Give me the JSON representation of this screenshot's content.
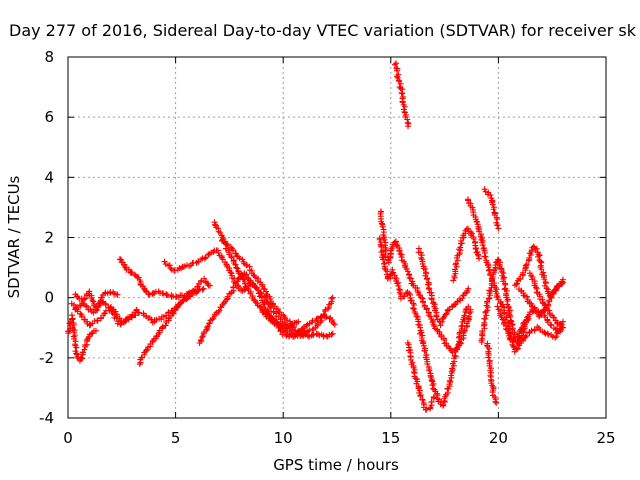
{
  "chart_data": {
    "type": "scatter",
    "title": "Day 277 of 2016, Sidereal Day-to-day VTEC variation (SDTVAR) for receiver sk",
    "xlabel": "GPS time / hours",
    "ylabel": "SDTVAR / TECUs",
    "xlim": [
      0,
      25
    ],
    "ylim": [
      -4,
      8
    ],
    "x_ticks": [
      0,
      5,
      10,
      15,
      20,
      25
    ],
    "y_ticks": [
      -4,
      -2,
      0,
      2,
      4,
      6,
      8
    ],
    "grid": true,
    "marker": "plus",
    "marker_color": "#ff0000",
    "segments": [
      {
        "points": [
          [
            0.0,
            -1.2
          ],
          [
            0.2,
            -0.6
          ],
          [
            0.4,
            -1.9
          ],
          [
            0.6,
            -2.1
          ],
          [
            0.8,
            -1.6
          ],
          [
            1.0,
            -1.2
          ],
          [
            1.3,
            -1.1
          ]
        ]
      },
      {
        "points": [
          [
            0.2,
            -0.2
          ],
          [
            0.6,
            -0.6
          ],
          [
            1.0,
            -0.9
          ],
          [
            1.5,
            -0.7
          ],
          [
            2.0,
            -0.3
          ],
          [
            2.5,
            -0.8
          ],
          [
            3.0,
            -0.6
          ],
          [
            3.3,
            -0.5
          ]
        ]
      },
      {
        "points": [
          [
            0.3,
            -0.4
          ],
          [
            0.7,
            -0.2
          ],
          [
            1.2,
            -0.5
          ],
          [
            1.6,
            -0.1
          ],
          [
            2.0,
            -0.4
          ],
          [
            2.4,
            -0.9
          ],
          [
            2.8,
            -0.7
          ],
          [
            3.2,
            -0.4
          ]
        ]
      },
      {
        "points": [
          [
            0.3,
            0.1
          ],
          [
            0.7,
            -0.1
          ],
          [
            1.0,
            0.2
          ],
          [
            1.3,
            -0.4
          ],
          [
            1.6,
            0.1
          ],
          [
            2.0,
            0.2
          ],
          [
            2.3,
            0.1
          ]
        ]
      },
      {
        "points": [
          [
            2.4,
            1.3
          ],
          [
            2.7,
            1.0
          ],
          [
            3.0,
            0.8
          ],
          [
            3.3,
            0.6
          ],
          [
            3.5,
            0.3
          ],
          [
            3.8,
            0.1
          ],
          [
            4.2,
            0.2
          ],
          [
            4.6,
            0.1
          ],
          [
            5.0,
            0.0
          ],
          [
            5.5,
            0.1
          ],
          [
            6.0,
            0.2
          ],
          [
            6.3,
            0.3
          ]
        ]
      },
      {
        "points": [
          [
            3.3,
            -2.2
          ],
          [
            3.6,
            -1.8
          ],
          [
            3.9,
            -1.5
          ],
          [
            4.2,
            -1.2
          ],
          [
            4.5,
            -0.9
          ],
          [
            4.8,
            -0.6
          ],
          [
            5.1,
            -0.3
          ],
          [
            5.4,
            -0.1
          ],
          [
            5.7,
            0.1
          ],
          [
            6.0,
            0.2
          ]
        ]
      },
      {
        "points": [
          [
            3.5,
            -0.5
          ],
          [
            3.9,
            -0.8
          ],
          [
            4.3,
            -0.7
          ],
          [
            4.7,
            -0.5
          ],
          [
            5.1,
            -0.3
          ],
          [
            5.5,
            0.0
          ],
          [
            5.9,
            0.3
          ],
          [
            6.3,
            0.6
          ],
          [
            6.6,
            0.4
          ]
        ]
      },
      {
        "points": [
          [
            4.5,
            1.2
          ],
          [
            4.9,
            0.9
          ],
          [
            5.3,
            1.0
          ],
          [
            5.7,
            1.1
          ],
          [
            6.1,
            1.2
          ],
          [
            6.5,
            1.4
          ],
          [
            6.9,
            1.6
          ],
          [
            7.3,
            1.2
          ],
          [
            7.7,
            0.6
          ],
          [
            8.1,
            0.2
          ],
          [
            8.5,
            0.5
          ],
          [
            8.9,
            0.2
          ],
          [
            9.3,
            -0.2
          ],
          [
            9.7,
            -0.6
          ],
          [
            10.1,
            -0.9
          ],
          [
            10.5,
            -1.1
          ]
        ]
      },
      {
        "points": [
          [
            6.1,
            -1.5
          ],
          [
            6.4,
            -1.1
          ],
          [
            6.7,
            -0.7
          ],
          [
            7.0,
            -0.4
          ],
          [
            7.3,
            -0.1
          ],
          [
            7.6,
            0.2
          ],
          [
            7.9,
            0.6
          ],
          [
            8.2,
            0.8
          ],
          [
            8.5,
            0.5
          ],
          [
            8.8,
            0.3
          ],
          [
            9.1,
            -0.2
          ],
          [
            9.4,
            -0.6
          ],
          [
            9.7,
            -0.9
          ],
          [
            10.0,
            -1.2
          ],
          [
            10.3,
            -1.3
          ],
          [
            10.6,
            -1.2
          ],
          [
            11.0,
            -1.1
          ]
        ]
      },
      {
        "points": [
          [
            6.8,
            2.5
          ],
          [
            7.1,
            2.1
          ],
          [
            7.4,
            1.6
          ],
          [
            7.7,
            1.2
          ],
          [
            8.0,
            0.8
          ],
          [
            8.3,
            0.4
          ],
          [
            8.6,
            0.0
          ],
          [
            8.9,
            -0.3
          ],
          [
            9.2,
            -0.6
          ],
          [
            9.5,
            -0.8
          ],
          [
            9.8,
            -0.9
          ],
          [
            10.1,
            -1.0
          ],
          [
            10.4,
            -0.9
          ],
          [
            10.7,
            -0.8
          ]
        ]
      },
      {
        "points": [
          [
            7.2,
            1.9
          ],
          [
            7.6,
            1.6
          ],
          [
            8.0,
            1.3
          ],
          [
            8.4,
            1.0
          ],
          [
            8.8,
            0.6
          ],
          [
            9.2,
            0.2
          ],
          [
            9.6,
            -0.3
          ],
          [
            10.0,
            -0.6
          ],
          [
            10.4,
            -0.9
          ],
          [
            10.8,
            -1.2
          ],
          [
            11.2,
            -1.3
          ],
          [
            11.6,
            -1.2
          ],
          [
            12.0,
            -1.3
          ],
          [
            12.3,
            -1.2
          ]
        ]
      },
      {
        "points": [
          [
            9.0,
            -0.4
          ],
          [
            9.4,
            -0.6
          ],
          [
            9.8,
            -0.9
          ],
          [
            10.2,
            -1.2
          ],
          [
            10.6,
            -1.2
          ],
          [
            11.0,
            -1.0
          ],
          [
            11.4,
            -0.8
          ],
          [
            11.8,
            -0.6
          ],
          [
            12.2,
            -0.7
          ],
          [
            12.4,
            -0.9
          ]
        ]
      },
      {
        "points": [
          [
            10.5,
            -1.3
          ],
          [
            11.0,
            -1.2
          ],
          [
            11.5,
            -1.0
          ],
          [
            11.8,
            -0.7
          ],
          [
            12.0,
            -0.4
          ],
          [
            12.2,
            -0.2
          ],
          [
            12.3,
            0.0
          ]
        ]
      },
      {
        "points": [
          [
            15.2,
            7.8
          ],
          [
            15.35,
            7.3
          ],
          [
            15.5,
            6.9
          ],
          [
            15.65,
            6.2
          ],
          [
            15.8,
            5.7
          ]
        ]
      },
      {
        "points": [
          [
            14.5,
            2.9
          ],
          [
            14.6,
            2.4
          ],
          [
            14.7,
            1.9
          ],
          [
            14.8,
            1.4
          ],
          [
            14.9,
            1.2
          ],
          [
            15.0,
            1.5
          ],
          [
            15.2,
            1.9
          ],
          [
            15.4,
            1.6
          ],
          [
            15.6,
            1.2
          ],
          [
            15.8,
            0.8
          ],
          [
            16.0,
            0.5
          ],
          [
            16.2,
            0.3
          ],
          [
            16.4,
            0.0
          ],
          [
            16.6,
            -0.3
          ],
          [
            16.8,
            -0.6
          ],
          [
            17.0,
            -0.9
          ],
          [
            17.3,
            -1.2
          ],
          [
            17.6,
            -1.6
          ],
          [
            17.9,
            -1.8
          ],
          [
            18.2,
            -1.6
          ],
          [
            18.5,
            -1.0
          ],
          [
            18.7,
            -0.4
          ]
        ]
      },
      {
        "points": [
          [
            14.5,
            2.0
          ],
          [
            14.7,
            1.1
          ],
          [
            14.9,
            0.6
          ],
          [
            15.1,
            0.9
          ],
          [
            15.3,
            0.5
          ],
          [
            15.5,
            0.0
          ],
          [
            15.8,
            0.2
          ],
          [
            16.0,
            -0.2
          ],
          [
            16.2,
            -0.6
          ],
          [
            16.4,
            -1.2
          ],
          [
            16.6,
            -1.8
          ],
          [
            16.8,
            -2.5
          ],
          [
            17.0,
            -3.0
          ],
          [
            17.2,
            -3.4
          ],
          [
            17.4,
            -3.6
          ],
          [
            17.6,
            -3.2
          ],
          [
            17.8,
            -2.6
          ],
          [
            18.0,
            -1.9
          ],
          [
            18.2,
            -1.3
          ],
          [
            18.4,
            -0.7
          ],
          [
            18.6,
            -0.3
          ]
        ]
      },
      {
        "points": [
          [
            16.3,
            1.6
          ],
          [
            16.5,
            1.2
          ],
          [
            16.7,
            0.6
          ],
          [
            16.9,
            0.0
          ],
          [
            17.1,
            -0.5
          ],
          [
            17.3,
            -0.9
          ],
          [
            17.5,
            -0.6
          ],
          [
            17.7,
            -0.4
          ],
          [
            18.0,
            -0.2
          ],
          [
            18.3,
            0.0
          ],
          [
            18.6,
            0.3
          ]
        ]
      },
      {
        "points": [
          [
            15.8,
            -1.5
          ],
          [
            16.0,
            -2.2
          ],
          [
            16.2,
            -2.8
          ],
          [
            16.4,
            -3.3
          ],
          [
            16.6,
            -3.7
          ],
          [
            16.8,
            -3.7
          ],
          [
            17.0,
            -3.3
          ]
        ]
      },
      {
        "points": [
          [
            17.9,
            0.6
          ],
          [
            18.1,
            1.3
          ],
          [
            18.3,
            1.9
          ],
          [
            18.5,
            2.3
          ],
          [
            18.7,
            2.2
          ],
          [
            18.9,
            1.8
          ],
          [
            19.1,
            1.3
          ]
        ]
      },
      {
        "points": [
          [
            18.6,
            3.3
          ],
          [
            18.8,
            2.9
          ],
          [
            19.0,
            2.5
          ],
          [
            19.2,
            2.0
          ],
          [
            19.4,
            1.4
          ],
          [
            19.6,
            0.8
          ],
          [
            19.8,
            0.4
          ],
          [
            20.0,
            0.0
          ],
          [
            20.2,
            -0.3
          ],
          [
            20.4,
            -0.8
          ],
          [
            20.6,
            -1.4
          ],
          [
            20.8,
            -1.8
          ],
          [
            21.0,
            -1.5
          ],
          [
            21.2,
            -1.0
          ],
          [
            21.4,
            -0.7
          ]
        ]
      },
      {
        "points": [
          [
            19.4,
            3.6
          ],
          [
            19.6,
            3.4
          ],
          [
            19.8,
            3.0
          ],
          [
            20.0,
            2.3
          ]
        ]
      },
      {
        "points": [
          [
            19.5,
            -1.5
          ],
          [
            19.6,
            -2.3
          ],
          [
            19.7,
            -2.9
          ],
          [
            19.8,
            -3.3
          ],
          [
            19.9,
            -3.5
          ]
        ]
      },
      {
        "points": [
          [
            19.2,
            -1.5
          ],
          [
            19.4,
            -0.6
          ],
          [
            19.6,
            0.2
          ],
          [
            19.8,
            0.9
          ],
          [
            20.0,
            1.3
          ],
          [
            20.2,
            0.8
          ],
          [
            20.4,
            0.0
          ],
          [
            20.6,
            -0.8
          ],
          [
            20.8,
            -1.4
          ],
          [
            21.0,
            -1.2
          ],
          [
            21.3,
            -0.7
          ],
          [
            21.6,
            -0.4
          ],
          [
            22.0,
            -0.5
          ],
          [
            22.4,
            -0.9
          ],
          [
            22.8,
            -1.1
          ],
          [
            23.0,
            -0.8
          ]
        ]
      },
      {
        "points": [
          [
            20.0,
            -0.3
          ],
          [
            20.3,
            -0.9
          ],
          [
            20.6,
            -1.4
          ],
          [
            21.0,
            -1.5
          ],
          [
            21.4,
            -1.2
          ],
          [
            21.8,
            -1.0
          ],
          [
            22.2,
            -1.2
          ],
          [
            22.6,
            -1.3
          ],
          [
            23.0,
            -1.0
          ]
        ]
      },
      {
        "points": [
          [
            20.8,
            0.4
          ],
          [
            21.1,
            0.7
          ],
          [
            21.4,
            1.2
          ],
          [
            21.6,
            1.7
          ],
          [
            21.8,
            1.6
          ],
          [
            22.0,
            1.0
          ],
          [
            22.2,
            0.4
          ],
          [
            22.4,
            0.1
          ],
          [
            22.7,
            0.3
          ],
          [
            23.0,
            0.6
          ]
        ]
      },
      {
        "points": [
          [
            21.0,
            0.3
          ],
          [
            21.3,
            0.0
          ],
          [
            21.6,
            -0.3
          ],
          [
            21.9,
            -0.6
          ],
          [
            22.2,
            -0.4
          ],
          [
            22.5,
            0.1
          ],
          [
            22.8,
            0.4
          ],
          [
            23.0,
            0.5
          ]
        ]
      },
      {
        "points": [
          [
            21.5,
            0.8
          ],
          [
            21.8,
            0.2
          ],
          [
            22.1,
            -0.2
          ],
          [
            22.4,
            -0.5
          ],
          [
            22.7,
            -0.8
          ],
          [
            23.0,
            -1.0
          ]
        ]
      }
    ]
  }
}
